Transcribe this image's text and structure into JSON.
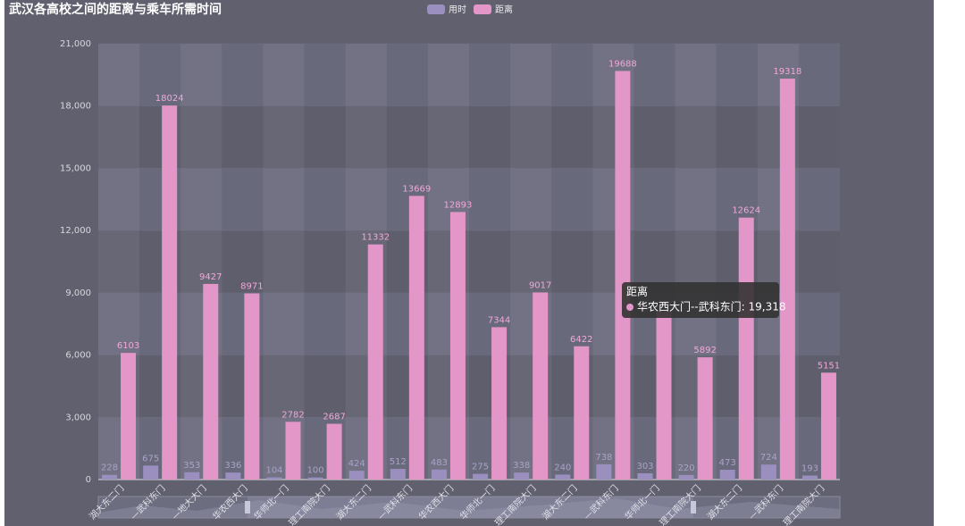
{
  "chart_data": {
    "type": "bar",
    "title": "武汉各高校之间的距离与乘车所需时间",
    "categories": [
      "湖大东二门",
      "—武科东门",
      "—地大大门",
      "华农西大门",
      "华师北一门",
      "理工南院大门",
      "湖大东二门",
      "—武科东门",
      "华农西大门",
      "华师北一门",
      "理工南院大门",
      "湖大东二门",
      "—武科东门",
      "华师北一门",
      "理工南院大门",
      "湖大东二门",
      "—武科东门",
      "理工南院大门"
    ],
    "series": [
      {
        "name": "用时",
        "color": "#9a8fbf",
        "values": [
          228,
          675,
          353,
          336,
          104,
          100,
          424,
          512,
          483,
          275,
          338,
          240,
          738,
          303,
          220,
          473,
          724,
          193
        ]
      },
      {
        "name": "距离",
        "color": "#e396c8",
        "values": [
          6103,
          18024,
          9427,
          8971,
          2782,
          2687,
          11332,
          13669,
          12893,
          7344,
          9017,
          6422,
          19688,
          8100,
          5892,
          12624,
          19318,
          5151
        ]
      }
    ],
    "ylim": [
      0,
      21000
    ],
    "yticks": [
      0,
      {
        "value": 3000,
        "label": "3,000"
      },
      {
        "value": 6000,
        "label": "6,000"
      },
      {
        "value": 9000,
        "label": "9,000"
      },
      {
        "value": 12000,
        "label": "12,000"
      },
      {
        "value": 15000,
        "label": "15,000"
      },
      {
        "value": 18000,
        "label": "18,000"
      },
      {
        "value": 21000,
        "label": "21,000"
      }
    ],
    "legend": "top",
    "tooltip": {
      "title": "距离",
      "text": "华农西大门--武科东门: 19,318"
    }
  }
}
